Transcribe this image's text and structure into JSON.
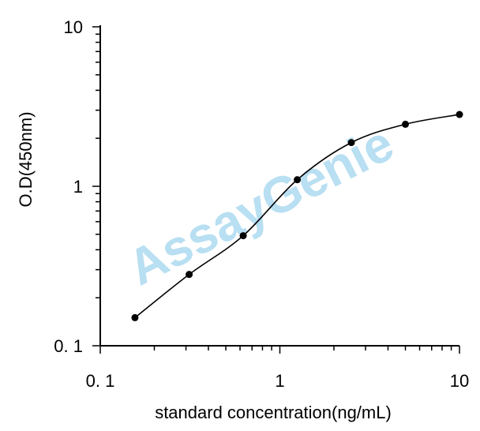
{
  "chart_data": {
    "type": "line",
    "x_scale": "log",
    "y_scale": "log",
    "xlim": [
      0.1,
      10
    ],
    "ylim": [
      0.1,
      10
    ],
    "xlabel": "standard concentration(ng/mL)",
    "ylabel": "O.D(450nm)",
    "x_tick_labels": [
      "0. 1",
      "1",
      "10"
    ],
    "y_tick_labels": [
      "0. 1",
      "1",
      "10"
    ],
    "grid": false,
    "series": [
      {
        "x": [
          0.156,
          0.3125,
          0.625,
          1.25,
          2.5,
          5,
          10
        ],
        "y": [
          0.15,
          0.28,
          0.49,
          1.1,
          1.88,
          2.45,
          2.82
        ],
        "color": "#000000",
        "marker": "circle"
      }
    ],
    "watermark": {
      "text": "AssayGenie",
      "color": "#b8dff2"
    }
  }
}
